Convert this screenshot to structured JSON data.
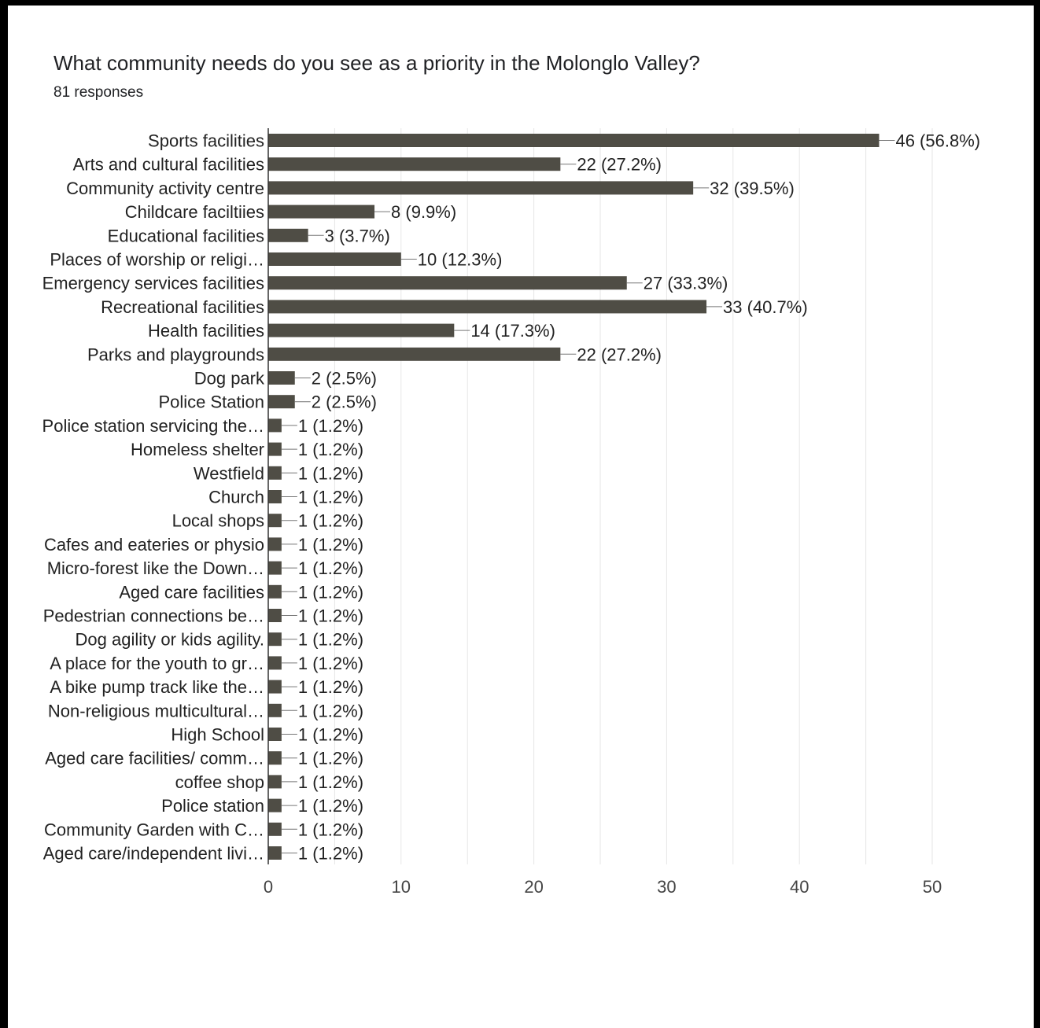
{
  "chart_data": {
    "type": "bar",
    "orientation": "horizontal",
    "title": "What community needs do you see as a priority in the Molonglo Valley?",
    "subtitle": "81 responses",
    "categories": [
      "Sports facilities",
      "Arts and cultural facilities",
      "Community activity centre",
      "Childcare faciltiies",
      "Educational facilities",
      "Places of worship or religi…",
      "Emergency services facilities",
      "Recreational facilities",
      "Health facilities",
      "Parks and playgrounds",
      "Dog park",
      "Police Station",
      "Police station servicing the…",
      "Homeless shelter",
      "Westfield",
      "Church",
      "Local shops",
      "Cafes and eateries or physio",
      "Micro-forest like the Down…",
      "Aged care facilities",
      "Pedestrian connections be…",
      "Dog agility or kids agility.",
      "A place for the youth to gr…",
      "A bike pump track like the…",
      "Non-religious multicultural…",
      "High School",
      "Aged care facilities/ comm…",
      "coffee shop",
      "Police station",
      "Community Garden with C…",
      "Aged care/independent livi…"
    ],
    "values": [
      46,
      22,
      32,
      8,
      3,
      10,
      27,
      33,
      14,
      22,
      2,
      2,
      1,
      1,
      1,
      1,
      1,
      1,
      1,
      1,
      1,
      1,
      1,
      1,
      1,
      1,
      1,
      1,
      1,
      1,
      1
    ],
    "value_labels": [
      "46 (56.8%)",
      "22 (27.2%)",
      "32 (39.5%)",
      "8 (9.9%)",
      "3 (3.7%)",
      "10 (12.3%)",
      "27 (33.3%)",
      "33 (40.7%)",
      "14 (17.3%)",
      "22 (27.2%)",
      "2 (2.5%)",
      "2 (2.5%)",
      "1 (1.2%)",
      "1 (1.2%)",
      "1 (1.2%)",
      "1 (1.2%)",
      "1 (1.2%)",
      "1 (1.2%)",
      "1 (1.2%)",
      "1 (1.2%)",
      "1 (1.2%)",
      "1 (1.2%)",
      "1 (1.2%)",
      "1 (1.2%)",
      "1 (1.2%)",
      "1 (1.2%)",
      "1 (1.2%)",
      "1 (1.2%)",
      "1 (1.2%)",
      "1 (1.2%)",
      "1 (1.2%)"
    ],
    "xlim": [
      0,
      50
    ],
    "x_ticks": [
      0,
      10,
      20,
      30,
      40,
      50
    ],
    "x_tick_labels": [
      "0",
      "10",
      "20",
      "30",
      "40",
      "50"
    ],
    "grid": true,
    "bar_color": "#4f4d45",
    "grid_color": "#e6e6e6",
    "axis_color": "#333333"
  }
}
